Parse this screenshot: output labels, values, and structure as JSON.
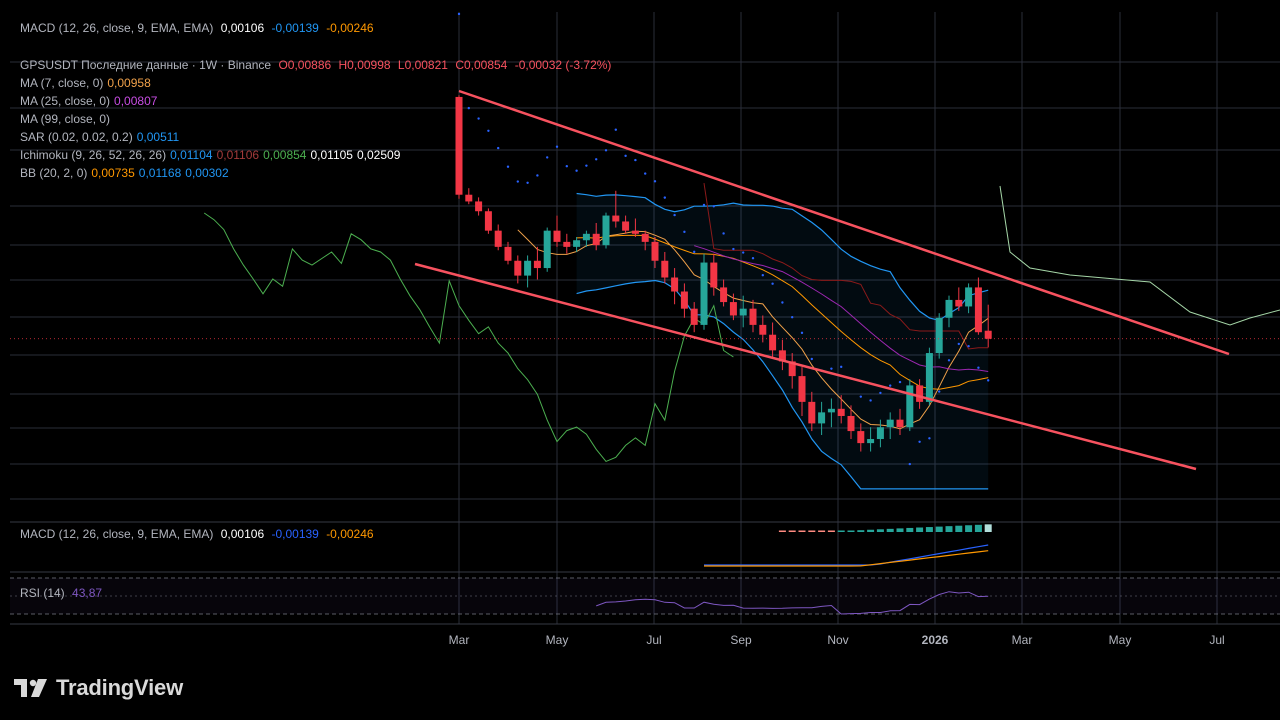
{
  "colors": {
    "background": "#000000",
    "grid": "#2a2e39",
    "candle_up": "#26a69a",
    "candle_down": "#f23645",
    "trendline": "#f7525f",
    "ma7": "#f0a14a",
    "ma25": "#9c27b0",
    "sar": "#2962ff",
    "bb": "#2196f3",
    "lagging_span": "#4caf50",
    "kijun": "#8b1a1a",
    "macd_line": "#2962ff",
    "signal_line": "#ff9800",
    "rsi": "#7e57c2"
  },
  "top_legend": {
    "macd": {
      "label": "MACD (12, 26, close, 9, EMA, EMA)",
      "v1": "0,00106",
      "v2": "-0,00139",
      "v3": "-0,00246"
    }
  },
  "price_legend": {
    "header": {
      "symbol": "GPSUSDT Последние данные · 1W · Binance",
      "o": "О0,00886",
      "h": "Н0,00998",
      "l": "L0,00821",
      "c": "C0,00854",
      "chg": "-0,00032 (-3.72%)"
    },
    "rows": [
      {
        "label": "MA (7, close, 0)",
        "values": [
          "0,00958"
        ],
        "colors": [
          "#f0a14a"
        ]
      },
      {
        "label": "MA (25, close, 0)",
        "values": [
          "0,00807"
        ],
        "colors": [
          "#c74de3"
        ]
      },
      {
        "label": "MA (99, close, 0)",
        "values": [],
        "colors": []
      },
      {
        "label": "SAR (0.02, 0.02, 0.2)",
        "values": [
          "0,00511"
        ],
        "colors": [
          "#2196f3"
        ]
      },
      {
        "label": "Ichimoku (9, 26, 52, 26, 26)",
        "values": [
          "0,01104",
          "0,01106",
          "0,00854",
          "0,01105",
          "0,02509"
        ],
        "colors": [
          "#2196f3",
          "#a33a3a",
          "#4caf50",
          "#ffffff",
          "#ffffff"
        ]
      },
      {
        "label": "BB (20, 2, 0)",
        "values": [
          "0,00735",
          "0,01168",
          "0,00302"
        ],
        "colors": [
          "#ff9800",
          "#2196f3",
          "#2196f3"
        ]
      }
    ]
  },
  "macd_pane_legend": {
    "label": "MACD (12, 26, close, 9, EMA, EMA)",
    "v1": "0,00106",
    "v2": "-0,00139",
    "v3": "-0,00246"
  },
  "rsi_pane_legend": {
    "label": "RSI (14)",
    "value": "43,87"
  },
  "brand": {
    "name": "TradingView"
  },
  "chart_data": {
    "type": "candlestick",
    "symbol": "GPSUSDT",
    "interval": "1W",
    "exchange": "Binance",
    "x_tick_labels": [
      "Mar",
      "May",
      "Jul",
      "Sep",
      "Nov",
      "2026",
      "Mar",
      "May",
      "Jul"
    ],
    "last_close": 0.00854,
    "candles": [
      [
        0.0258,
        0.026,
        0.0162,
        0.0165
      ],
      [
        0.0165,
        0.017,
        0.0158,
        0.016
      ],
      [
        0.016,
        0.0163,
        0.015,
        0.0153
      ],
      [
        0.0153,
        0.0155,
        0.0138,
        0.014
      ],
      [
        0.014,
        0.0144,
        0.0128,
        0.013
      ],
      [
        0.013,
        0.0133,
        0.012,
        0.0122
      ],
      [
        0.0122,
        0.0125,
        0.011,
        0.0114
      ],
      [
        0.0114,
        0.0125,
        0.0108,
        0.0122
      ],
      [
        0.0122,
        0.013,
        0.0112,
        0.0118
      ],
      [
        0.0118,
        0.0142,
        0.0116,
        0.014
      ],
      [
        0.014,
        0.015,
        0.013,
        0.0133
      ],
      [
        0.0133,
        0.0138,
        0.0126,
        0.013
      ],
      [
        0.013,
        0.0136,
        0.0127,
        0.0134
      ],
      [
        0.0134,
        0.014,
        0.013,
        0.0138
      ],
      [
        0.0138,
        0.0145,
        0.0128,
        0.0131
      ],
      [
        0.0131,
        0.0152,
        0.0129,
        0.015
      ],
      [
        0.015,
        0.0168,
        0.0142,
        0.0146
      ],
      [
        0.0146,
        0.015,
        0.0138,
        0.014
      ],
      [
        0.014,
        0.0148,
        0.0136,
        0.0138
      ],
      [
        0.0138,
        0.014,
        0.0128,
        0.0133
      ],
      [
        0.0133,
        0.0136,
        0.0118,
        0.0122
      ],
      [
        0.0122,
        0.0127,
        0.011,
        0.0113
      ],
      [
        0.0113,
        0.0118,
        0.01,
        0.0106
      ],
      [
        0.0106,
        0.011,
        0.0094,
        0.0098
      ],
      [
        0.0098,
        0.0101,
        0.0088,
        0.0091
      ],
      [
        0.0091,
        0.0126,
        0.0089,
        0.0121
      ],
      [
        0.0121,
        0.0126,
        0.0104,
        0.0108
      ],
      [
        0.0108,
        0.0112,
        0.0099,
        0.0101
      ],
      [
        0.0101,
        0.0105,
        0.0093,
        0.0095
      ],
      [
        0.0095,
        0.0104,
        0.009,
        0.0098
      ],
      [
        0.0098,
        0.0102,
        0.0088,
        0.0091
      ],
      [
        0.0091,
        0.0095,
        0.0084,
        0.0087
      ],
      [
        0.0087,
        0.0092,
        0.0078,
        0.0081
      ],
      [
        0.0081,
        0.0085,
        0.0074,
        0.0077
      ],
      [
        0.0077,
        0.008,
        0.0068,
        0.0072
      ],
      [
        0.0072,
        0.0075,
        0.006,
        0.0064
      ],
      [
        0.0064,
        0.0067,
        0.0056,
        0.0058
      ],
      [
        0.0058,
        0.0064,
        0.0055,
        0.0061
      ],
      [
        0.0061,
        0.0065,
        0.0057,
        0.0062
      ],
      [
        0.0062,
        0.0066,
        0.0058,
        0.006
      ],
      [
        0.006,
        0.0063,
        0.0054,
        0.0056
      ],
      [
        0.0056,
        0.0058,
        0.0051,
        0.0053
      ],
      [
        0.0053,
        0.0057,
        0.0051,
        0.0054
      ],
      [
        0.0054,
        0.0059,
        0.0052,
        0.0057
      ],
      [
        0.0057,
        0.0061,
        0.0054,
        0.0059
      ],
      [
        0.0059,
        0.0062,
        0.0055,
        0.0057
      ],
      [
        0.0057,
        0.0071,
        0.0056,
        0.0069
      ],
      [
        0.0069,
        0.0071,
        0.0062,
        0.0064
      ],
      [
        0.0064,
        0.0082,
        0.0063,
        0.008
      ],
      [
        0.008,
        0.0096,
        0.0078,
        0.0094
      ],
      [
        0.0094,
        0.0104,
        0.009,
        0.0102
      ],
      [
        0.0102,
        0.0108,
        0.0097,
        0.0099
      ],
      [
        0.0099,
        0.011,
        0.0096,
        0.0108
      ],
      [
        0.0108,
        0.0113,
        0.0087,
        0.0088
      ],
      [
        0.00886,
        0.00998,
        0.00821,
        0.00854
      ]
    ]
  }
}
